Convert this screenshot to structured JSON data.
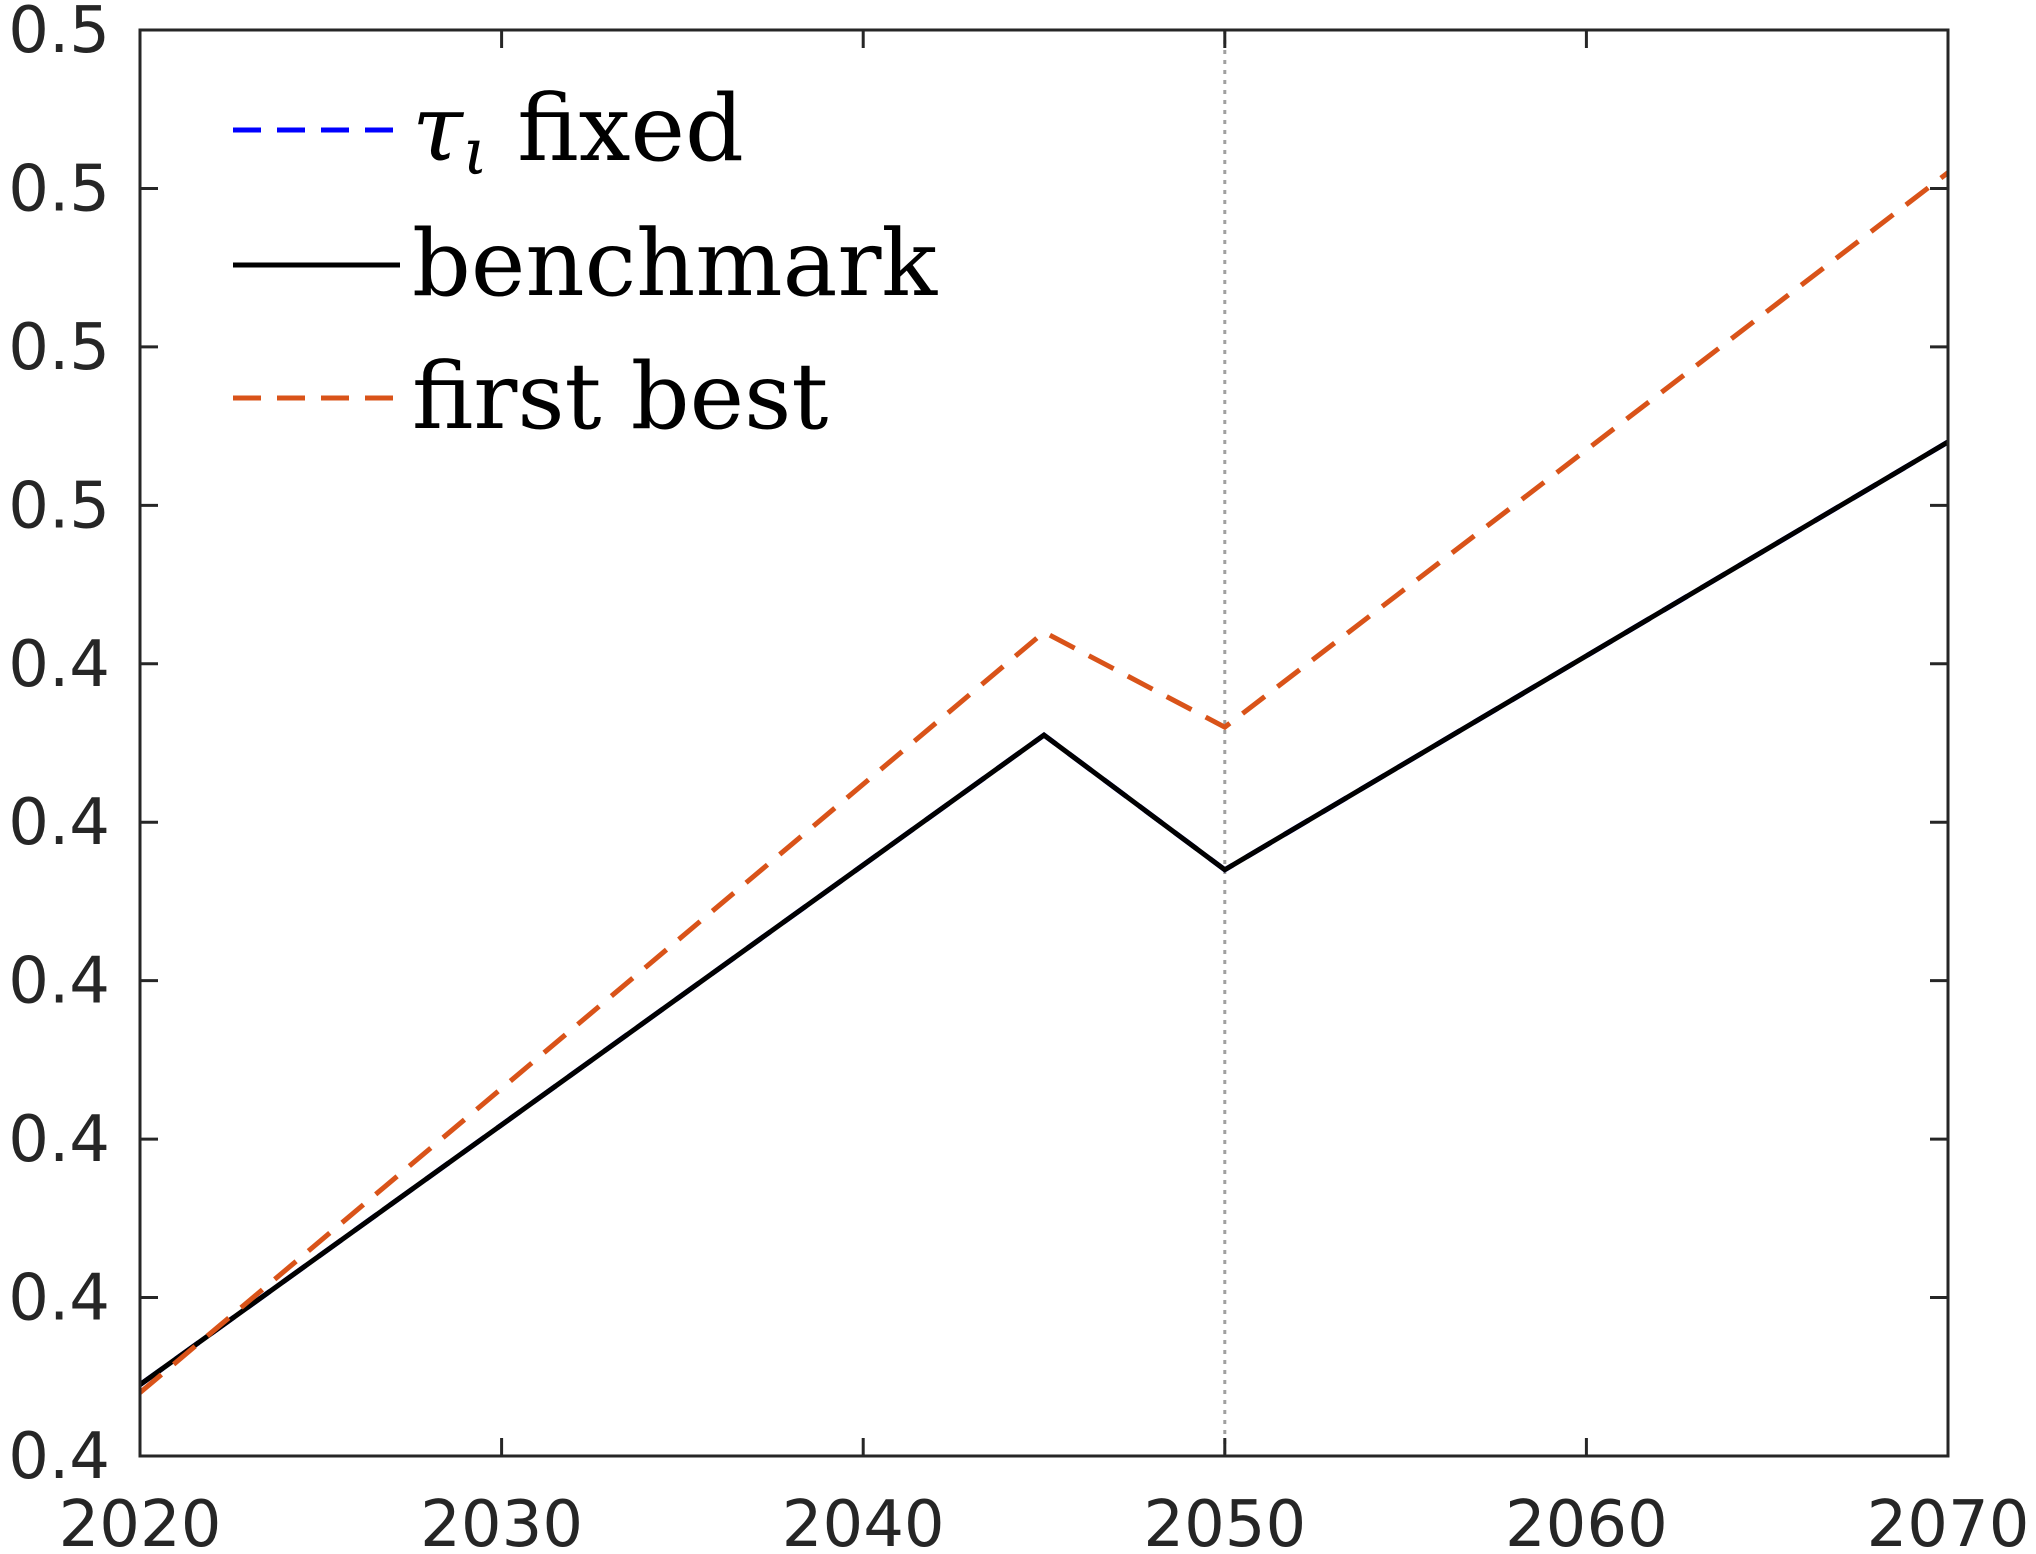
{
  "chart_data": {
    "type": "line",
    "x_ticks": [
      2020,
      2030,
      2040,
      2050,
      2060,
      2070
    ],
    "y_tick_labels": [
      "0.4",
      "0.4",
      "0.4",
      "0.4",
      "0.4",
      "0.4",
      "0.5",
      "0.5",
      "0.5",
      "0.5"
    ],
    "xlim": [
      2020,
      2070
    ],
    "ylim": [
      0,
      9
    ],
    "vertical_reference_line": {
      "x": 2050,
      "color": "#a0a0a0",
      "style": "dotted"
    },
    "grid": false,
    "legend_position": "top-left",
    "series": [
      {
        "name": "τ_ι fixed",
        "color": "#0000ff",
        "style": "dashed",
        "x": [
          2020,
          2045,
          2050,
          2070
        ],
        "y": [
          0.45,
          4.55,
          3.7,
          6.4
        ]
      },
      {
        "name": "benchmark",
        "color": "#000000",
        "style": "solid",
        "x": [
          2020,
          2045,
          2050,
          2070
        ],
        "y": [
          0.45,
          4.55,
          3.7,
          6.4
        ]
      },
      {
        "name": "first best",
        "color": "#d95319",
        "style": "dashed",
        "x": [
          2020,
          2045,
          2050,
          2070
        ],
        "y": [
          0.4,
          5.2,
          4.6,
          8.1
        ]
      }
    ]
  }
}
